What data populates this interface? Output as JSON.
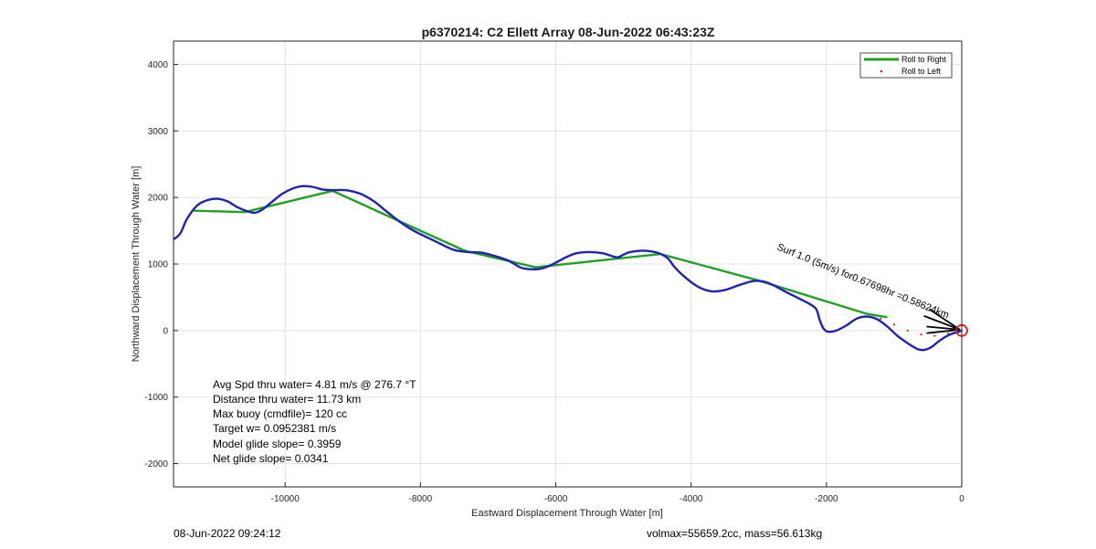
{
  "chart_data": {
    "type": "line",
    "title": "p6370214: C2 Ellett Array 08-Jun-2022 06:43:23Z",
    "xlabel": "Eastward Displacement Through Water [m]",
    "ylabel": "Northward Displacement Through Water [m]",
    "xlim": [
      -11650,
      0
    ],
    "ylim": [
      -2350,
      4350
    ],
    "xticks": [
      -10000,
      -8000,
      -6000,
      -4000,
      -2000,
      0
    ],
    "yticks": [
      -2000,
      -1000,
      0,
      1000,
      2000,
      3000,
      4000
    ],
    "grid": true,
    "legend_position": "top-right",
    "legend": [
      "Roll to Right",
      "Roll to Left"
    ],
    "colors": {
      "track": "#1f22b4",
      "roll_right": "#22a022",
      "roll_left": "#e02020",
      "marker": "#e02020"
    },
    "series": [
      {
        "name": "Roll to Right",
        "type": "line",
        "x": [
          -11350,
          -10600,
          -9300,
          -8000,
          -7350,
          -6300,
          -4450,
          -3000,
          -1400,
          -1100
        ],
        "y": [
          1800,
          1780,
          2100,
          1500,
          1200,
          950,
          1150,
          750,
          250,
          200
        ]
      },
      {
        "name": "Roll to Left",
        "type": "scatter",
        "x": [
          -1200,
          -1000,
          -800,
          -600,
          -400,
          -200,
          0
        ],
        "y": [
          180,
          90,
          0,
          -60,
          -80,
          -40,
          0
        ]
      },
      {
        "name": "",
        "type": "line",
        "x": [
          -11650,
          -11550,
          -11450,
          -11300,
          -11150,
          -11000,
          -10850,
          -10700,
          -10550,
          -10450,
          -10350,
          -10200,
          -10050,
          -9900,
          -9750,
          -9600,
          -9450,
          -9300,
          -9100,
          -8900,
          -8700,
          -8500,
          -8300,
          -8100,
          -7900,
          -7700,
          -7500,
          -7300,
          -7100,
          -6900,
          -6700,
          -6500,
          -6300,
          -6150,
          -6000,
          -5850,
          -5700,
          -5500,
          -5300,
          -5100,
          -5000,
          -4900,
          -4700,
          -4500,
          -4350,
          -4250,
          -4100,
          -3900,
          -3700,
          -3500,
          -3300,
          -3100,
          -2950,
          -2800,
          -2600,
          -2400,
          -2250,
          -2150,
          -2100,
          -2050,
          -2000,
          -1950,
          -1850,
          -1700,
          -1550,
          -1400,
          -1250,
          -1100,
          -950,
          -800,
          -650,
          -550,
          -450,
          -350,
          -250,
          -150,
          -50,
          0
        ],
        "y": [
          1370,
          1460,
          1680,
          1880,
          1960,
          1980,
          1940,
          1850,
          1790,
          1770,
          1810,
          1930,
          2050,
          2130,
          2170,
          2160,
          2120,
          2110,
          2110,
          2060,
          1950,
          1790,
          1630,
          1500,
          1400,
          1300,
          1210,
          1180,
          1170,
          1120,
          1050,
          940,
          920,
          950,
          1020,
          1100,
          1160,
          1180,
          1160,
          1100,
          1140,
          1180,
          1200,
          1170,
          1090,
          960,
          810,
          660,
          590,
          610,
          680,
          740,
          740,
          690,
          580,
          480,
          400,
          320,
          160,
          40,
          -10,
          -20,
          0,
          80,
          180,
          210,
          170,
          60,
          -80,
          -190,
          -280,
          -290,
          -250,
          -170,
          -100,
          -50,
          -20,
          0
        ]
      }
    ],
    "marker": {
      "x": 0,
      "y": 0,
      "label": "circle"
    },
    "annotation": {
      "text": "Surf 1.0 (5m/s) for 0.67698hr =0.5862 4km",
      "visible_text": "Surf 1.0 (5m/s) for0.67698hr =0.58624km"
    },
    "arrows_count": 3
  },
  "stats": {
    "avg_speed": "Avg Spd thru water=  4.81 m/s @ 276.7 °T",
    "distance": "Distance thru water= 11.73 km",
    "max_buoy": "Max buoy (cmdfile)= 120 cc",
    "target_w": "Target w= 0.0952381 m/s",
    "model_glide": "Model glide slope= 0.3959",
    "net_glide": "Net glide slope= 0.0341"
  },
  "footer": {
    "timestamp": "08-Jun-2022 09:24:12",
    "vol_mass": "volmax=55659.2cc, mass=56.613kg"
  },
  "annotation_text": "Surf 1.0 (5m/s) for0.67698hr =0.58624km"
}
